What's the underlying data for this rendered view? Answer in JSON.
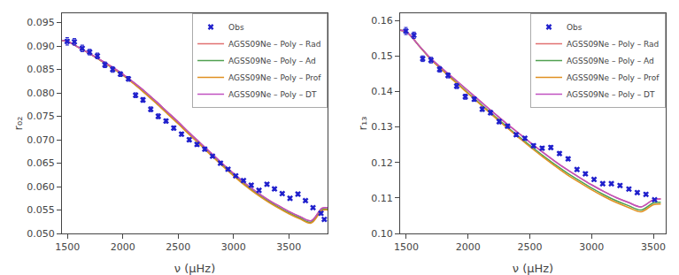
{
  "chart_data": [
    {
      "type": "line",
      "xlabel": "ν (μHz)",
      "ylabel": "r₀₂",
      "xlim": [
        1450,
        3850
      ],
      "ylim": [
        0.05,
        0.097
      ],
      "xticks": [
        1500,
        2000,
        2500,
        3000,
        3500
      ],
      "yticks": [
        {
          "value": 0.05,
          "label": "0.050"
        },
        0.055,
        {
          "value": 0.06,
          "label": "0.060"
        },
        0.065,
        {
          "value": 0.07,
          "label": "0.070"
        },
        0.075,
        {
          "value": 0.08,
          "label": "0.080"
        },
        0.085,
        {
          "value": 0.09,
          "label": "0.090"
        },
        0.095
      ],
      "grid": false,
      "legend": "upper right",
      "series": [
        {
          "name": "Obs",
          "type": "scatter",
          "marker": "x",
          "color": "#2020cc",
          "x": [
            1497,
            1562,
            1633,
            1700,
            1770,
            1838,
            1908,
            1978,
            2050,
            2115,
            2182,
            2252,
            2320,
            2390,
            2460,
            2530,
            2600,
            2670,
            2740,
            2810,
            2882,
            2950,
            3020,
            3090,
            3160,
            3230,
            3302,
            3370,
            3440,
            3510,
            3582,
            3650,
            3718,
            3790,
            3820
          ],
          "values": [
            0.091,
            0.0909,
            0.0895,
            0.0887,
            0.0879,
            0.086,
            0.085,
            0.084,
            0.083,
            0.0795,
            0.0785,
            0.0765,
            0.075,
            0.074,
            0.0725,
            0.0712,
            0.07,
            0.069,
            0.068,
            0.0665,
            0.065,
            0.0637,
            0.0623,
            0.0613,
            0.0603,
            0.0592,
            0.0605,
            0.0595,
            0.0585,
            0.0575,
            0.0584,
            0.057,
            0.0555,
            0.0543,
            0.053
          ],
          "errors": [
            0.0008,
            0.0007,
            0.0007,
            0.0006,
            0.0006,
            0.0006,
            0.0006,
            0.0005,
            0.0005,
            0.0005,
            0.0005,
            0.0005,
            0.0005,
            0.0004,
            0.0004,
            0.0004,
            0.0004,
            0.0004,
            0.0004,
            0.0003,
            0.0003,
            0.0003,
            0.0003,
            0.0003,
            0.0003,
            0.0003,
            0.0003,
            0.0003,
            0.0003,
            0.0003,
            0.0003,
            0.0003,
            0.0003,
            0.0003,
            0.0003
          ]
        },
        {
          "name": "AGSS09Ne – Poly – Rad",
          "type": "line",
          "color": "#e07070",
          "x": [
            1450,
            1500,
            1600,
            1700,
            1800,
            1900,
            2000,
            2100,
            2200,
            2300,
            2400,
            2500,
            2600,
            2700,
            2800,
            2900,
            3000,
            3100,
            3200,
            3300,
            3400,
            3500,
            3600,
            3700,
            3800,
            3850
          ],
          "values": [
            0.0912,
            0.091,
            0.0897,
            0.0884,
            0.087,
            0.0856,
            0.084,
            0.0822,
            0.0803,
            0.0782,
            0.076,
            0.0738,
            0.0715,
            0.0693,
            0.0671,
            0.0649,
            0.0628,
            0.0608,
            0.059,
            0.0574,
            0.056,
            0.0547,
            0.0536,
            0.0527,
            0.0554,
            0.0555
          ]
        },
        {
          "name": "AGSS09Ne – Poly – Ad",
          "type": "line",
          "color": "#50a050",
          "x": [
            1450,
            1500,
            1600,
            1700,
            1800,
            1900,
            2000,
            2100,
            2200,
            2300,
            2400,
            2500,
            2600,
            2700,
            2800,
            2900,
            3000,
            3100,
            3200,
            3300,
            3400,
            3500,
            3600,
            3700,
            3800,
            3850
          ],
          "values": [
            0.0912,
            0.091,
            0.0897,
            0.0884,
            0.0869,
            0.0854,
            0.0838,
            0.082,
            0.08,
            0.0779,
            0.0757,
            0.0735,
            0.0712,
            0.069,
            0.0668,
            0.0646,
            0.0625,
            0.0605,
            0.0587,
            0.0571,
            0.0557,
            0.0544,
            0.0533,
            0.0524,
            0.0551,
            0.0552
          ]
        },
        {
          "name": "AGSS09Ne – Poly – Prof",
          "type": "line",
          "color": "#e09020",
          "x": [
            1450,
            1500,
            1600,
            1700,
            1800,
            1900,
            2000,
            2100,
            2200,
            2300,
            2400,
            2500,
            2600,
            2700,
            2800,
            2900,
            3000,
            3100,
            3200,
            3300,
            3400,
            3500,
            3600,
            3700,
            3800,
            3850
          ],
          "values": [
            0.0912,
            0.091,
            0.0897,
            0.0884,
            0.0869,
            0.0854,
            0.0838,
            0.0819,
            0.0799,
            0.0778,
            0.0756,
            0.0734,
            0.0711,
            0.0689,
            0.0666,
            0.0644,
            0.0623,
            0.0603,
            0.0585,
            0.0569,
            0.0555,
            0.0542,
            0.0531,
            0.0522,
            0.0549,
            0.055
          ]
        },
        {
          "name": "AGSS09Ne – Poly – DT",
          "type": "line",
          "color": "#c050c0",
          "x": [
            1450,
            1500,
            1600,
            1700,
            1800,
            1900,
            2000,
            2100,
            2200,
            2300,
            2400,
            2500,
            2600,
            2700,
            2800,
            2900,
            3000,
            3100,
            3200,
            3300,
            3400,
            3500,
            3600,
            3700,
            3800,
            3850
          ],
          "values": [
            0.0912,
            0.091,
            0.0897,
            0.0884,
            0.087,
            0.0856,
            0.084,
            0.0822,
            0.0803,
            0.0782,
            0.076,
            0.0738,
            0.0715,
            0.0693,
            0.0671,
            0.0649,
            0.0628,
            0.0608,
            0.059,
            0.0574,
            0.056,
            0.0547,
            0.0536,
            0.0527,
            0.0554,
            0.0555
          ]
        }
      ]
    },
    {
      "type": "line",
      "xlabel": "ν (μHz)",
      "ylabel": "r₁₃",
      "xlim": [
        1450,
        3600
      ],
      "ylim": [
        0.1,
        0.162
      ],
      "xticks": [
        1500,
        2000,
        2500,
        3000,
        3500
      ],
      "yticks": [
        {
          "value": 0.1,
          "label": "0.10"
        },
        0.11,
        0.12,
        0.13,
        0.14,
        0.15,
        0.16
      ],
      "grid": false,
      "legend": "upper right",
      "series": [
        {
          "name": "Obs",
          "type": "scatter",
          "marker": "x",
          "color": "#2020cc",
          "x": [
            1497,
            1562,
            1633,
            1700,
            1770,
            1838,
            1908,
            1978,
            2050,
            2115,
            2182,
            2252,
            2320,
            2390,
            2460,
            2530,
            2600,
            2670,
            2740,
            2810,
            2882,
            2950,
            3020,
            3090,
            3160,
            3230,
            3302,
            3370,
            3440,
            3510
          ],
          "values": [
            0.157,
            0.1558,
            0.1492,
            0.1488,
            0.1462,
            0.1445,
            0.1415,
            0.1385,
            0.1378,
            0.135,
            0.134,
            0.1315,
            0.1302,
            0.1278,
            0.1268,
            0.1247,
            0.124,
            0.1242,
            0.1225,
            0.121,
            0.118,
            0.1168,
            0.1152,
            0.114,
            0.114,
            0.1135,
            0.1125,
            0.1115,
            0.111,
            0.1095
          ],
          "errors": [
            0.001,
            0.0009,
            0.0008,
            0.0008,
            0.0008,
            0.0007,
            0.0007,
            0.0007,
            0.0006,
            0.0006,
            0.0006,
            0.0006,
            0.0005,
            0.0005,
            0.0005,
            0.0005,
            0.0005,
            0.0005,
            0.0005,
            0.0005,
            0.0004,
            0.0004,
            0.0004,
            0.0004,
            0.0004,
            0.0004,
            0.0004,
            0.0004,
            0.0004,
            0.0003
          ]
        },
        {
          "name": "AGSS09Ne – Poly – Rad",
          "type": "line",
          "color": "#e07070",
          "x": [
            1450,
            1500,
            1600,
            1700,
            1800,
            1900,
            2000,
            2100,
            2200,
            2300,
            2400,
            2500,
            2600,
            2700,
            2800,
            2900,
            3000,
            3100,
            3200,
            3300,
            3400,
            3500,
            3560
          ],
          "values": [
            0.1572,
            0.1568,
            0.153,
            0.1492,
            0.1462,
            0.1432,
            0.1402,
            0.1372,
            0.1342,
            0.1313,
            0.1285,
            0.1257,
            0.123,
            0.1204,
            0.118,
            0.1158,
            0.1137,
            0.1118,
            0.1101,
            0.1087,
            0.1075,
            0.1095,
            0.1097
          ]
        },
        {
          "name": "AGSS09Ne – Poly – Ad",
          "type": "line",
          "color": "#50a050",
          "x": [
            1450,
            1500,
            1600,
            1700,
            1800,
            1900,
            2000,
            2100,
            2200,
            2300,
            2400,
            2500,
            2600,
            2700,
            2800,
            2900,
            3000,
            3100,
            3200,
            3300,
            3400,
            3500,
            3560
          ],
          "values": [
            0.1572,
            0.1568,
            0.153,
            0.149,
            0.1458,
            0.1427,
            0.1396,
            0.1365,
            0.1335,
            0.1305,
            0.1276,
            0.1248,
            0.1221,
            0.1195,
            0.1171,
            0.1149,
            0.1128,
            0.1109,
            0.1092,
            0.1078,
            0.1066,
            0.1086,
            0.1088
          ]
        },
        {
          "name": "AGSS09Ne – Poly – Prof",
          "type": "line",
          "color": "#e09020",
          "x": [
            1450,
            1500,
            1600,
            1700,
            1800,
            1900,
            2000,
            2100,
            2200,
            2300,
            2400,
            2500,
            2600,
            2700,
            2800,
            2900,
            3000,
            3100,
            3200,
            3300,
            3400,
            3500,
            3560
          ],
          "values": [
            0.1572,
            0.1568,
            0.153,
            0.149,
            0.1457,
            0.1425,
            0.1394,
            0.1363,
            0.1332,
            0.1302,
            0.1273,
            0.1244,
            0.1217,
            0.1191,
            0.1166,
            0.1144,
            0.1123,
            0.1104,
            0.1087,
            0.1073,
            0.1061,
            0.1081,
            0.1083
          ]
        },
        {
          "name": "AGSS09Ne – Poly – DT",
          "type": "line",
          "color": "#c050c0",
          "x": [
            1450,
            1500,
            1600,
            1700,
            1800,
            1900,
            2000,
            2100,
            2200,
            2300,
            2400,
            2500,
            2600,
            2700,
            2800,
            2900,
            3000,
            3100,
            3200,
            3300,
            3400,
            3500,
            3560
          ],
          "values": [
            0.1572,
            0.1568,
            0.153,
            0.1492,
            0.1462,
            0.1432,
            0.1402,
            0.1372,
            0.1342,
            0.1313,
            0.1285,
            0.1257,
            0.123,
            0.1204,
            0.118,
            0.1158,
            0.1137,
            0.1118,
            0.1101,
            0.1087,
            0.1075,
            0.1095,
            0.1097
          ]
        }
      ]
    }
  ]
}
